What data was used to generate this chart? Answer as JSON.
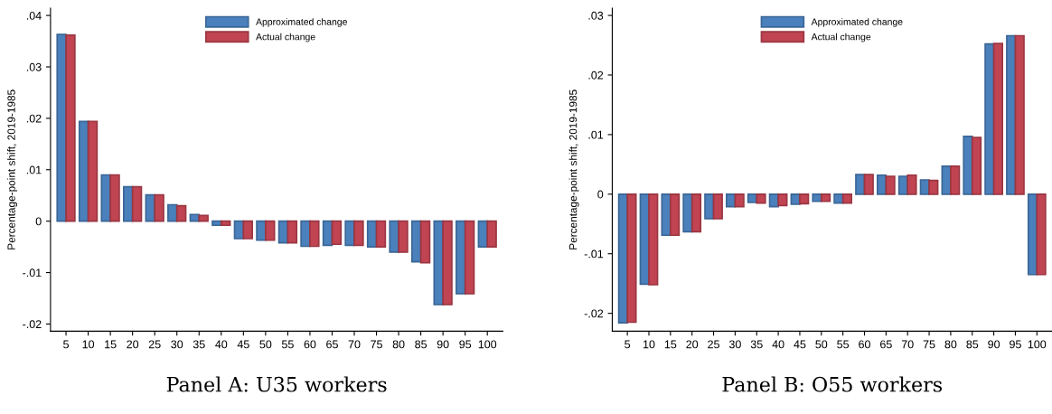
{
  "chart_data": [
    {
      "type": "bar",
      "title": "Panel A: U35 workers",
      "ylabel": "Percentage-point shift, 2019-1985",
      "categories": [
        "5",
        "10",
        "15",
        "20",
        "25",
        "30",
        "35",
        "40",
        "45",
        "50",
        "55",
        "60",
        "65",
        "70",
        "75",
        "80",
        "85",
        "90",
        "95",
        "100"
      ],
      "series": [
        {
          "name": "Approximated change",
          "color": "#4a80bb",
          "values": [
            0.0363,
            0.0194,
            0.009,
            0.0067,
            0.0051,
            0.0032,
            0.0013,
            -0.0008,
            -0.0034,
            -0.0037,
            -0.0042,
            -0.0049,
            -0.0047,
            -0.0047,
            -0.005,
            -0.006,
            -0.0079,
            -0.0162,
            -0.0141,
            -0.005
          ]
        },
        {
          "name": "Actual change",
          "color": "#c14453",
          "values": [
            0.0362,
            0.0194,
            0.009,
            0.0067,
            0.0051,
            0.003,
            0.0011,
            -0.0008,
            -0.0034,
            -0.0037,
            -0.0042,
            -0.0049,
            -0.0045,
            -0.0047,
            -0.005,
            -0.006,
            -0.0081,
            -0.0162,
            -0.0141,
            -0.005
          ]
        }
      ],
      "ylim": [
        -0.0214,
        0.0414
      ],
      "yticks": [
        {
          "value": -0.02,
          "label": "-.02"
        },
        {
          "value": -0.01,
          "label": "-.01"
        },
        0,
        {
          "value": 0.01,
          "label": ".01"
        },
        {
          "value": 0.02,
          "label": ".02"
        },
        {
          "value": 0.03,
          "label": ".03"
        },
        {
          "value": 0.04,
          "label": ".04"
        }
      ],
      "grid": false,
      "legend": "top"
    },
    {
      "type": "bar",
      "title": "Panel B: O55 workers",
      "ylabel": "Percentage-point shift, 2019-1985",
      "categories": [
        "5",
        "10",
        "15",
        "20",
        "25",
        "30",
        "35",
        "40",
        "45",
        "50",
        "55",
        "60",
        "65",
        "70",
        "75",
        "80",
        "85",
        "90",
        "95",
        "100"
      ],
      "series": [
        {
          "name": "Approximated change",
          "color": "#4a80bb",
          "values": [
            -0.0216,
            -0.0151,
            -0.0069,
            -0.0063,
            -0.0041,
            -0.0021,
            -0.0014,
            -0.0021,
            -0.0017,
            -0.0012,
            -0.0015,
            0.0033,
            0.0032,
            0.003,
            0.0024,
            0.0047,
            0.0097,
            0.0252,
            0.0266,
            -0.0135
          ]
        },
        {
          "name": "Actual change",
          "color": "#c14453",
          "values": [
            -0.0215,
            -0.0152,
            -0.0069,
            -0.0063,
            -0.0041,
            -0.0021,
            -0.0015,
            -0.0019,
            -0.0016,
            -0.0012,
            -0.0015,
            0.0033,
            0.003,
            0.0032,
            0.0023,
            0.0047,
            0.0095,
            0.0253,
            0.0266,
            -0.0135
          ]
        }
      ],
      "ylim": [
        -0.023,
        0.0312
      ],
      "yticks": [
        {
          "value": -0.02,
          "label": "-.02"
        },
        {
          "value": -0.01,
          "label": "-.01"
        },
        0,
        {
          "value": 0.01,
          "label": ".01"
        },
        {
          "value": 0.02,
          "label": ".02"
        },
        {
          "value": 0.03,
          "label": ".03"
        }
      ],
      "grid": false,
      "legend": "top"
    }
  ]
}
